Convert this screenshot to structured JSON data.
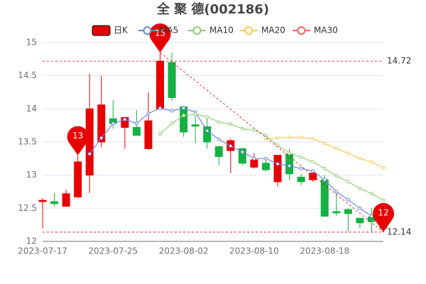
{
  "chart_data": {
    "type": "candlestick",
    "title": "全 聚 德(002186)",
    "categories": [
      "2023-07-17",
      null,
      null,
      null,
      null,
      null,
      "2023-07-25",
      null,
      null,
      null,
      null,
      null,
      "2023-08-02",
      null,
      null,
      null,
      null,
      null,
      "2023-08-10",
      null,
      null,
      null,
      null,
      null,
      "2023-08-18",
      null,
      null,
      null,
      null,
      null
    ],
    "series": [
      {
        "name": "日K",
        "type": "candlestick",
        "up_color": "#e60000",
        "down_color": "#14b143",
        "open": [
          12.6,
          12.6,
          12.53,
          12.67,
          13.0,
          13.5,
          13.85,
          13.72,
          13.72,
          13.4,
          14.0,
          14.7,
          14.03,
          13.76,
          13.73,
          13.43,
          13.37,
          13.4,
          13.12,
          13.18,
          12.9,
          13.32,
          12.97,
          12.93,
          12.93,
          12.45,
          12.48,
          12.35,
          12.37,
          12.33
        ],
        "close": [
          12.62,
          12.57,
          12.72,
          13.2,
          14.0,
          14.06,
          13.78,
          13.87,
          13.6,
          13.82,
          14.72,
          14.17,
          13.65,
          13.74,
          13.5,
          13.28,
          13.52,
          13.18,
          13.23,
          13.08,
          13.3,
          13.02,
          12.9,
          13.03,
          12.38,
          12.43,
          12.42,
          12.28,
          12.3,
          12.2
        ],
        "high": [
          12.65,
          12.73,
          12.78,
          13.3,
          14.53,
          14.5,
          14.13,
          13.88,
          13.98,
          14.25,
          14.85,
          14.85,
          14.05,
          13.98,
          13.88,
          13.43,
          13.55,
          13.4,
          13.33,
          13.25,
          13.3,
          13.4,
          13.02,
          13.05,
          13.0,
          12.78,
          12.5,
          12.35,
          12.5,
          12.35
        ],
        "low": [
          12.2,
          12.53,
          12.52,
          12.66,
          12.73,
          13.42,
          13.7,
          13.4,
          13.6,
          13.38,
          13.98,
          14.12,
          13.58,
          13.48,
          13.4,
          13.15,
          13.03,
          13.15,
          13.1,
          13.05,
          12.83,
          12.92,
          12.85,
          12.9,
          12.38,
          12.38,
          12.15,
          12.2,
          12.14,
          12.14
        ]
      },
      {
        "name": "MA5",
        "color": "#6e86d6",
        "values": [
          null,
          null,
          null,
          null,
          13.32,
          13.56,
          13.78,
          13.84,
          13.78,
          13.93,
          14.01,
          13.97,
          14.01,
          13.95,
          13.67,
          13.54,
          13.44,
          13.35,
          13.25,
          13.25,
          13.17,
          13.14,
          13.1,
          13.06,
          12.93,
          12.75,
          12.63,
          12.5,
          12.38,
          12.3
        ]
      },
      {
        "name": "MA10",
        "color": "#91cc75",
        "values": [
          null,
          null,
          null,
          null,
          null,
          null,
          null,
          null,
          null,
          null,
          13.62,
          13.78,
          13.9,
          13.92,
          13.88,
          13.8,
          13.77,
          13.7,
          13.68,
          13.6,
          13.45,
          13.33,
          13.27,
          13.2,
          13.1,
          12.99,
          12.9,
          12.8,
          12.72,
          12.62
        ]
      },
      {
        "name": "MA20",
        "color": "#fac858",
        "values": [
          null,
          null,
          null,
          null,
          null,
          null,
          null,
          null,
          null,
          null,
          null,
          null,
          null,
          null,
          null,
          null,
          null,
          null,
          null,
          13.54,
          13.56,
          13.57,
          13.57,
          13.55,
          13.48,
          13.4,
          13.33,
          13.25,
          13.2,
          13.11
        ]
      },
      {
        "name": "MA30",
        "color": "#ee6666",
        "values": [
          null,
          null,
          null,
          null,
          null,
          null,
          null,
          null,
          null,
          null,
          null,
          null,
          null,
          null,
          null,
          null,
          null,
          null,
          null,
          null,
          null,
          null,
          null,
          null,
          null,
          null,
          null,
          null,
          null,
          null
        ]
      }
    ],
    "ylim": [
      12,
      15
    ],
    "yticks": [
      12,
      12.5,
      13,
      13.5,
      14,
      14.5,
      15
    ],
    "grid": true,
    "mark_points": [
      {
        "index": 10,
        "value": 14.85,
        "label": "15"
      },
      {
        "index": 3,
        "value": 13.3,
        "label": "13"
      },
      {
        "index": 29,
        "value": 12.14,
        "label": "12"
      }
    ],
    "mark_lines": [
      14.72,
      12.14
    ],
    "mark_color": "#e60000"
  }
}
